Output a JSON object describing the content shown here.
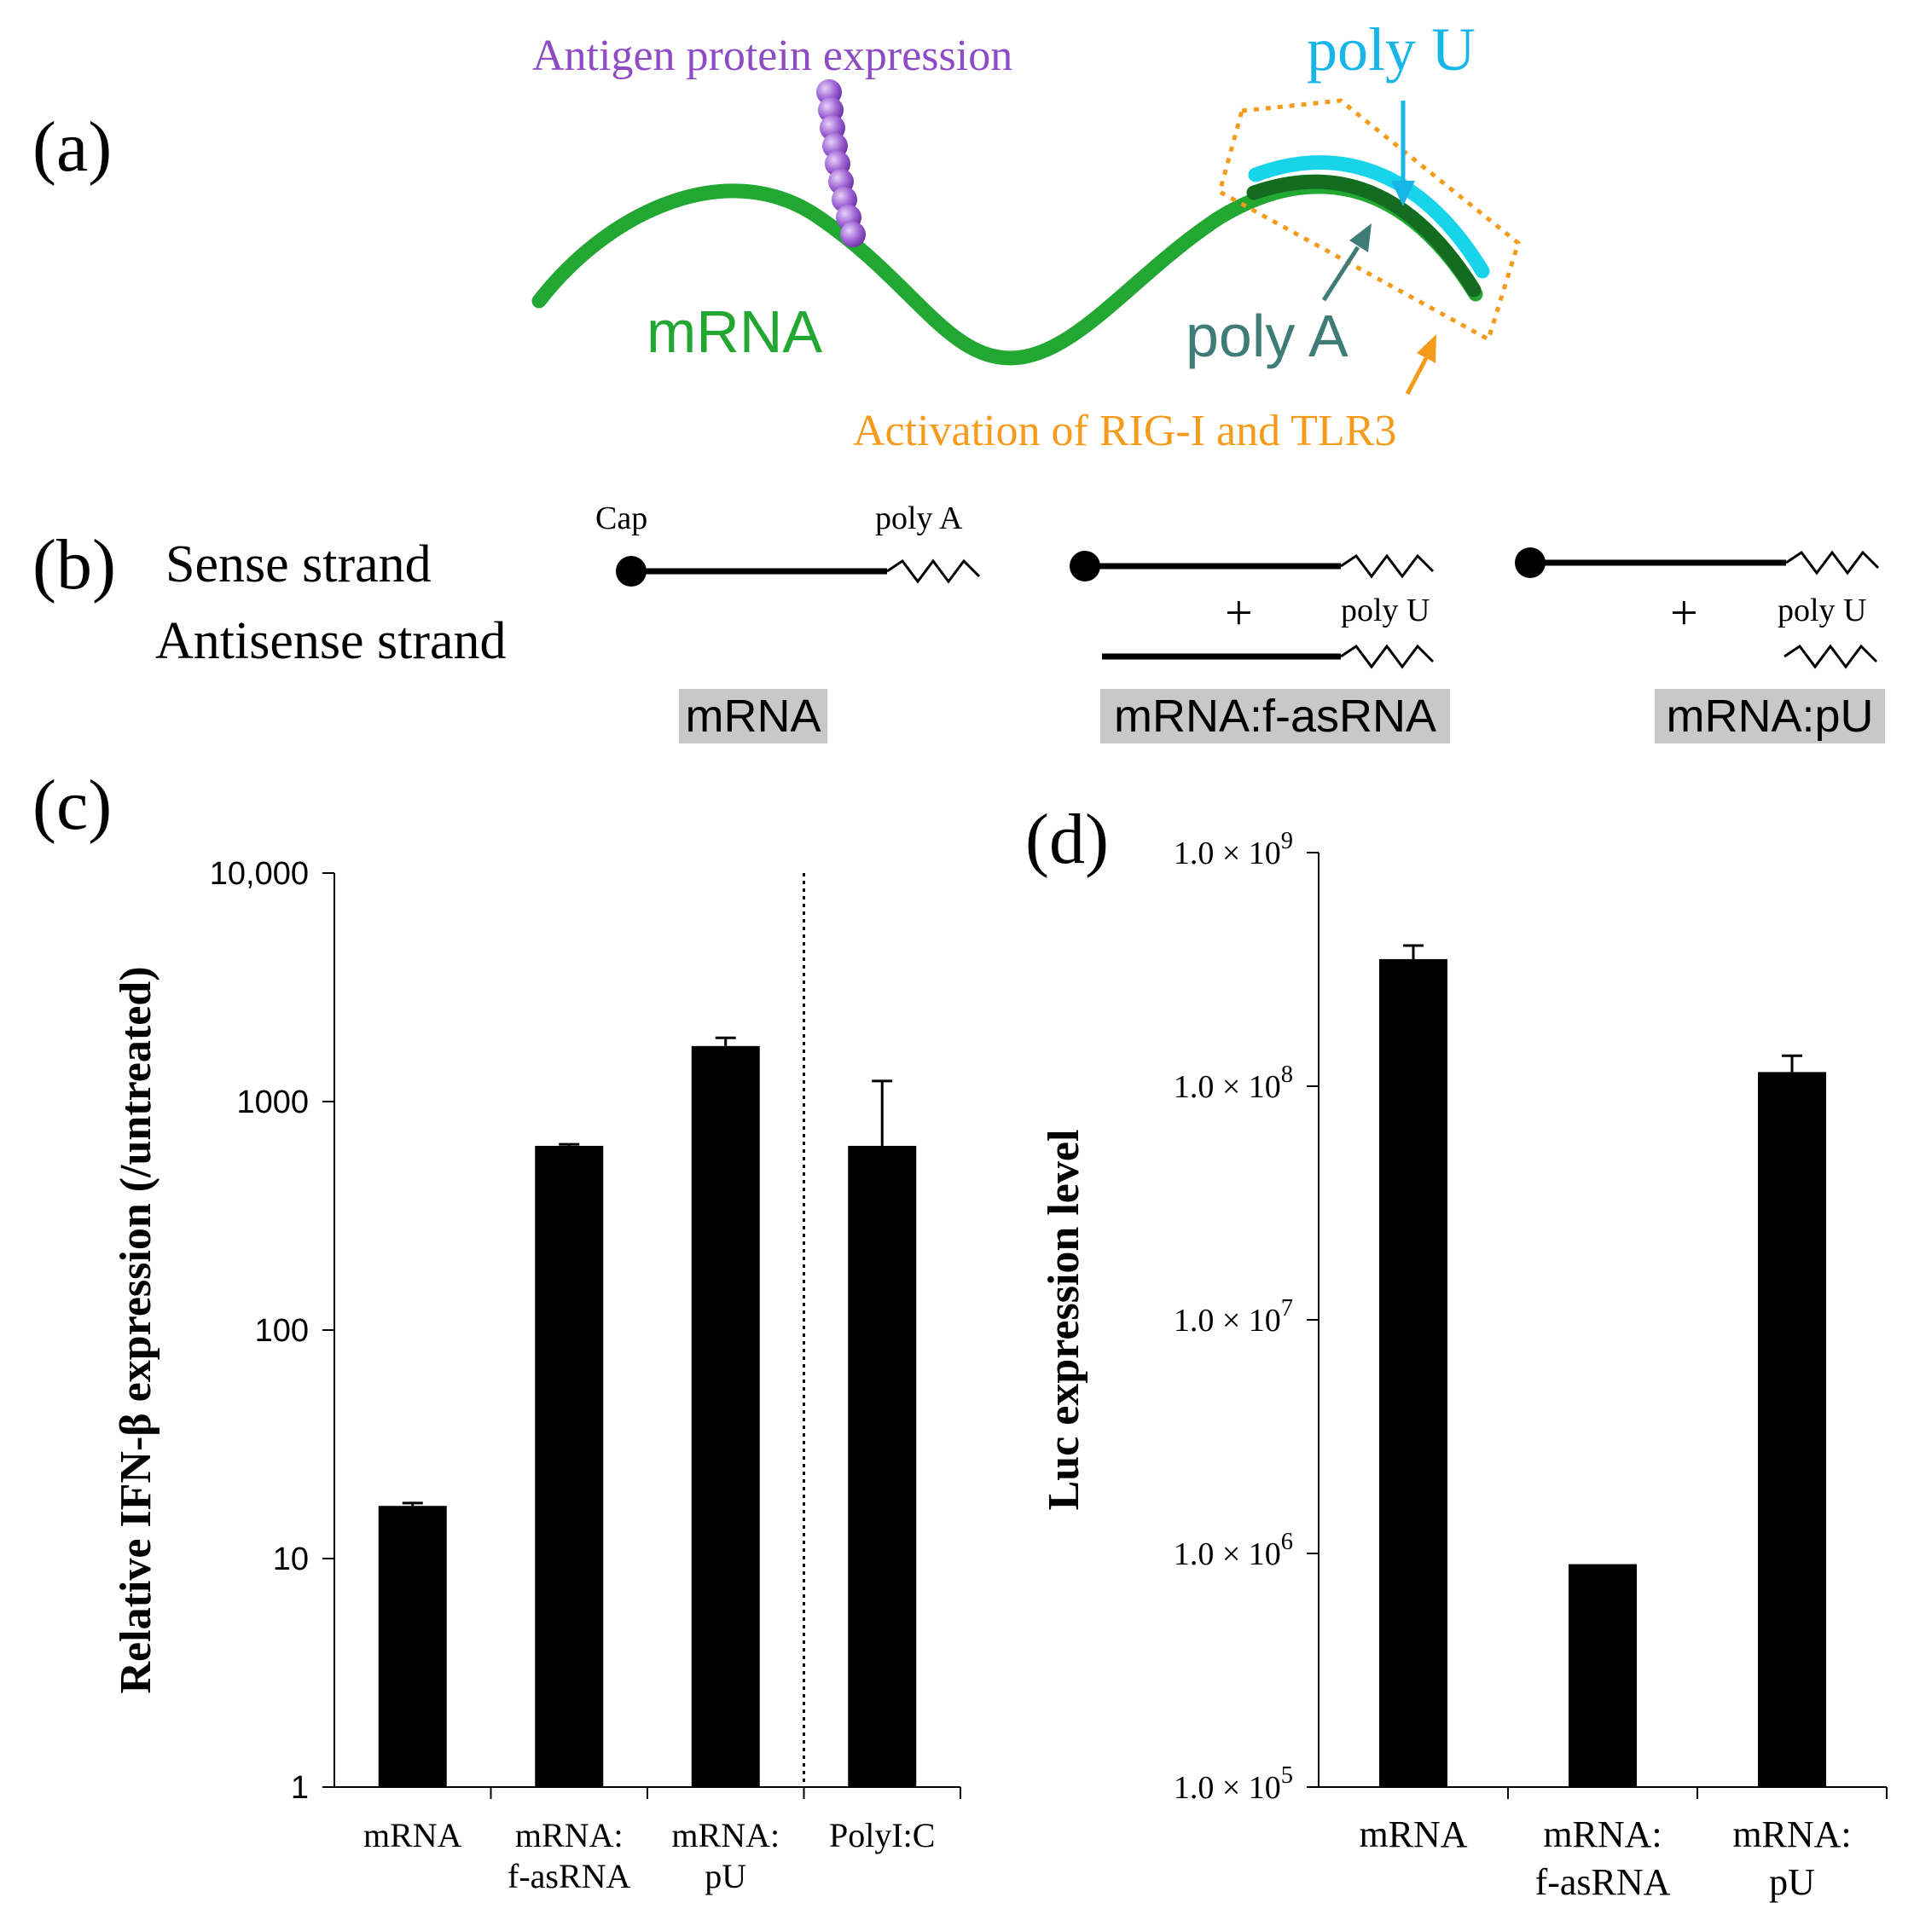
{
  "colors": {
    "mrna": "#23a733",
    "mrna_dark": "#146c20",
    "antigen": "#8e4cc4",
    "poly_u": "#18b5e8",
    "poly_a": "#3f7c78",
    "activation": "#f59b1c",
    "label_box": "#c8c8c8",
    "bar": "#000000"
  },
  "panel_a": {
    "letter": "(a)",
    "antigen_label": "Antigen protein expression",
    "poly_u_label": "poly U",
    "mrna_label": "mRNA",
    "poly_a_label": "poly A",
    "activation_label": "Activation of RIG-I and TLR3"
  },
  "panel_b": {
    "letter": "(b)",
    "sense_label": "Sense strand",
    "antisense_label": "Antisense strand",
    "cap_label": "Cap",
    "poly_a_label": "poly A",
    "poly_u_label": "poly U",
    "plus": "+",
    "constructs": [
      "mRNA",
      "mRNA:f-asRNA",
      "mRNA:pU"
    ]
  },
  "panel_c": {
    "letter": "(c)"
  },
  "panel_d": {
    "letter": "(d)"
  },
  "chart_data": [
    {
      "type": "bar",
      "panel": "c",
      "scale": "log",
      "title": "",
      "ylabel": "Relative IFN-β expression (/untreated)",
      "ylim": [
        1,
        10000
      ],
      "yticks": [
        1,
        10,
        100,
        1000,
        10000
      ],
      "ytick_labels": [
        "1",
        "10",
        "100",
        "1000",
        "10,000"
      ],
      "categories": [
        [
          "mRNA"
        ],
        [
          "mRNA:",
          "f-asRNA"
        ],
        [
          "mRNA:",
          "pU"
        ],
        [
          "PolyI:C"
        ]
      ],
      "values": [
        17,
        640,
        1750,
        640
      ],
      "error": [
        0.5,
        10,
        150,
        590
      ],
      "separator_after_index": 2
    },
    {
      "type": "bar",
      "panel": "d",
      "scale": "log",
      "title": "",
      "ylabel": "Luc expression level",
      "ylim": [
        100000,
        1000000000
      ],
      "yticks": [
        100000,
        1000000,
        10000000,
        100000000,
        1000000000
      ],
      "ytick_labels": [
        {
          "base": "1.0 × 10",
          "exp": "5"
        },
        {
          "base": "1.0 × 10",
          "exp": "6"
        },
        {
          "base": "1.0 × 10",
          "exp": "7"
        },
        {
          "base": "1.0 × 10",
          "exp": "8"
        },
        {
          "base": "1.0 × 10",
          "exp": "9"
        }
      ],
      "categories": [
        [
          "mRNA"
        ],
        [
          "mRNA:",
          "f-asRNA"
        ],
        [
          "mRNA:",
          "pU"
        ]
      ],
      "values": [
        350000000,
        900000,
        115000000
      ],
      "error": [
        50000000,
        0,
        20000000
      ]
    }
  ]
}
